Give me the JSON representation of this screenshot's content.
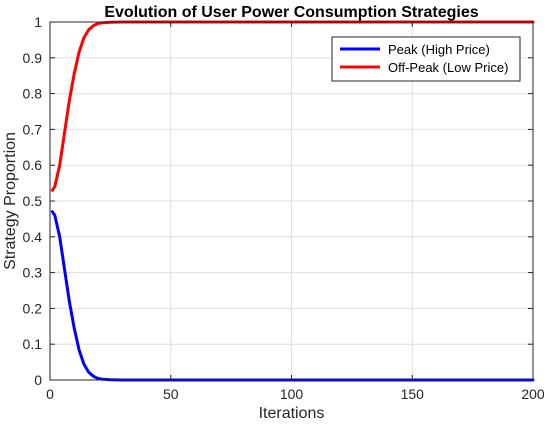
{
  "chart_data": {
    "type": "line",
    "title": "Evolution of User Power Consumption Strategies",
    "xlabel": "Iterations",
    "ylabel": "Strategy Proportion",
    "xlim": [
      0,
      200
    ],
    "ylim": [
      0,
      1
    ],
    "xticks": [
      0,
      50,
      100,
      150,
      200
    ],
    "yticks": [
      0,
      0.1,
      0.2,
      0.3,
      0.4,
      0.5,
      0.6,
      0.7,
      0.8,
      0.9,
      1
    ],
    "grid": true,
    "legend_position": "top-right",
    "series": [
      {
        "name": "Peak (High Price)",
        "color": "#0000ff",
        "x": [
          1,
          2,
          4,
          6,
          8,
          10,
          12,
          14,
          16,
          18,
          20,
          22,
          25,
          30,
          40,
          60,
          100,
          150,
          200
        ],
        "y": [
          0.47,
          0.46,
          0.4,
          0.31,
          0.22,
          0.145,
          0.085,
          0.045,
          0.022,
          0.01,
          0.004,
          0.002,
          0.0005,
          0,
          0,
          0,
          0,
          0,
          0
        ]
      },
      {
        "name": "Off-Peak (Low Price)",
        "color": "#ff0000",
        "x": [
          1,
          2,
          4,
          6,
          8,
          10,
          12,
          14,
          16,
          18,
          20,
          22,
          25,
          30,
          40,
          60,
          100,
          150,
          200
        ],
        "y": [
          0.53,
          0.54,
          0.6,
          0.69,
          0.78,
          0.855,
          0.915,
          0.955,
          0.978,
          0.99,
          0.996,
          0.998,
          0.9995,
          1,
          1,
          1,
          1,
          1,
          1
        ]
      }
    ]
  }
}
